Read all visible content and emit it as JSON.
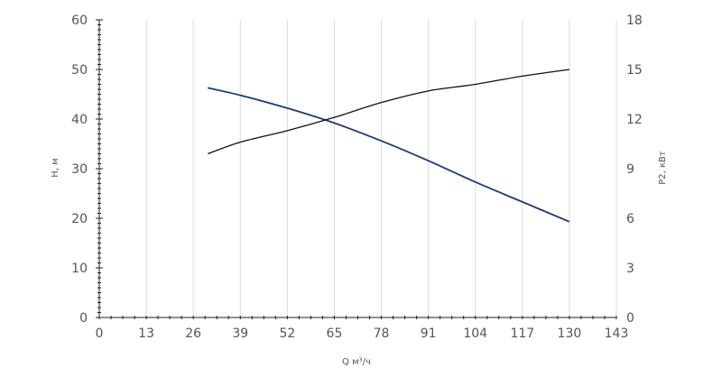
{
  "chart_data": {
    "type": "line",
    "title": "",
    "xlabel": "Q м³/ч",
    "ylabel": "H, м",
    "y2label": "P2, кВт",
    "xlim": [
      0,
      143
    ],
    "ylim": [
      0,
      60
    ],
    "y2lim": [
      0,
      18
    ],
    "x_ticks": [
      "0",
      "13",
      "26",
      "39",
      "52",
      "65",
      "78",
      "91",
      "104",
      "117",
      "130",
      "143"
    ],
    "y_ticks": [
      "0",
      "10",
      "20",
      "30",
      "40",
      "50",
      "60"
    ],
    "y2_ticks": [
      "0",
      "3",
      "6",
      "9",
      "12",
      "15",
      "18"
    ],
    "grid": "vertical",
    "legend": "none",
    "colors": {
      "head": "#1f3a73",
      "power": "#111111"
    },
    "series": [
      {
        "axis": "left",
        "x": [
          30,
          39,
          52,
          65,
          78,
          91,
          104,
          117,
          130
        ],
        "values": [
          46.3,
          44.8,
          42.2,
          39.2,
          35.6,
          31.6,
          27.3,
          23.3,
          19.3
        ]
      },
      {
        "axis": "right",
        "x": [
          30,
          39,
          52,
          65,
          78,
          91,
          104,
          117,
          130
        ],
        "values": [
          9.9,
          10.6,
          11.3,
          12.1,
          13.0,
          13.7,
          14.1,
          14.6,
          15.0
        ]
      }
    ]
  }
}
